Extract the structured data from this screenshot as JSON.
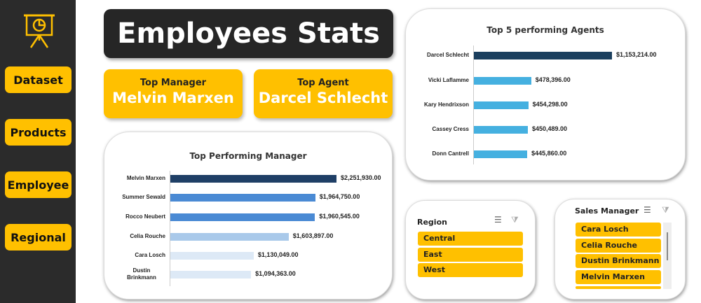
{
  "sidebar": {
    "logo_icon": "presentation-chart-icon",
    "items": [
      {
        "label": "Dataset"
      },
      {
        "label": "Products"
      },
      {
        "label": "Employee"
      },
      {
        "label": "Regional"
      }
    ]
  },
  "header": {
    "title": "Employees Stats"
  },
  "kpis": [
    {
      "label": "Top Manager",
      "value": "Melvin Marxen"
    },
    {
      "label": "Top Agent",
      "value": "Darcel Schlecht"
    }
  ],
  "colors": {
    "accent": "#ffc000",
    "dark": "#262626"
  },
  "chart_data": [
    {
      "type": "bar",
      "orientation": "horizontal",
      "title": "Top Performing Manager",
      "categories": [
        "Melvin Marxen",
        "Summer Sewald",
        "Rocco Neubert",
        "Celia Rouche",
        "Cara Losch",
        "Dustin Brinkmann"
      ],
      "values": [
        2251930,
        1964750,
        1960545,
        1603897,
        1130049,
        1094363
      ],
      "labels": [
        "$2,251,930.00",
        "$1,964,750.00",
        "$1,960,545.00",
        "$1,603,897.00",
        "$1,130,049.00",
        "$1,094,363.00"
      ],
      "colors": [
        "#1f3f66",
        "#4a8ad4",
        "#4a8ad4",
        "#a9c9ea",
        "#dde9f6",
        "#dde9f6"
      ]
    },
    {
      "type": "bar",
      "orientation": "horizontal",
      "title": "Top 5 performing Agents",
      "categories": [
        "Darcel Schlecht",
        "Vicki Laflamme",
        "Kary Hendrixson",
        "Cassey Cress",
        "Donn Cantrell"
      ],
      "values": [
        1153214,
        478396,
        454298,
        450489,
        445860
      ],
      "labels": [
        "$1,153,214.00",
        "$478,396.00",
        "$454,298.00",
        "$450,489.00",
        "$445,860.00"
      ],
      "colors": [
        "#1b3f5e",
        "#45b0e0",
        "#45b0e0",
        "#45b0e0",
        "#45b0e0"
      ]
    }
  ],
  "slicers": [
    {
      "title": "Region",
      "items": [
        "Central",
        "East",
        "West"
      ]
    },
    {
      "title": "Sales Manager",
      "items": [
        "Cara Losch",
        "Celia Rouche",
        "Dustin Brinkmann",
        "Melvin Marxen"
      ]
    }
  ],
  "icons": {
    "multiselect": "multi-select-icon",
    "clear_filter": "clear-filter-icon"
  }
}
